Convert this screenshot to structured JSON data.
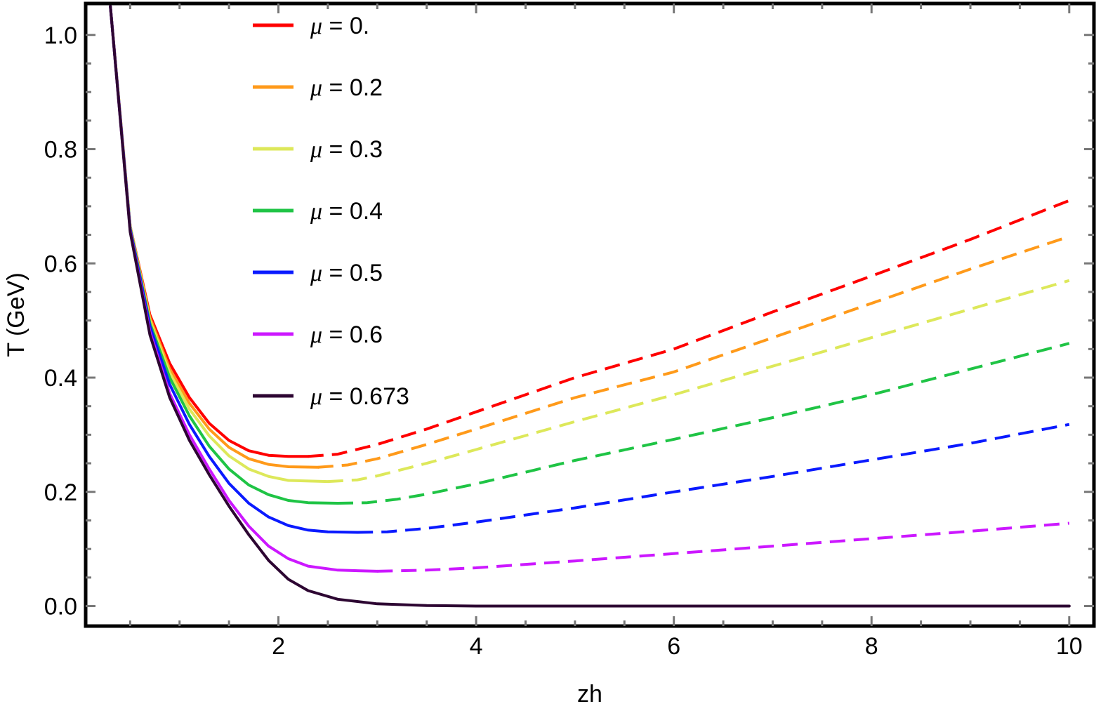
{
  "chart_data": {
    "type": "line",
    "title": "",
    "xlabel": "zh",
    "ylabel": "T (GeV)",
    "xlim": [
      0.05,
      10.25
    ],
    "ylim": [
      -0.035,
      1.055
    ],
    "xticks": [
      "2",
      "4",
      "6",
      "8",
      "10"
    ],
    "yticks": [
      "0.0",
      "0.2",
      "0.4",
      "0.6",
      "0.8",
      "1.0"
    ],
    "grid": false,
    "legend_position": "top-left",
    "legend_symbol": "μ",
    "series": [
      {
        "name": "= 0.",
        "color": "#ff0000",
        "solid": [
          [
            0.3,
            1.05
          ],
          [
            0.5,
            0.665
          ],
          [
            0.7,
            0.51
          ],
          [
            0.9,
            0.425
          ],
          [
            1.1,
            0.365
          ],
          [
            1.3,
            0.32
          ],
          [
            1.5,
            0.29
          ],
          [
            1.7,
            0.272
          ],
          [
            1.9,
            0.264
          ],
          [
            2.1,
            0.262
          ],
          [
            2.3,
            0.262
          ]
        ],
        "dashed": [
          [
            2.3,
            0.262
          ],
          [
            2.6,
            0.266
          ],
          [
            3.0,
            0.283
          ],
          [
            3.5,
            0.31
          ],
          [
            4.0,
            0.34
          ],
          [
            5.0,
            0.4
          ],
          [
            6.0,
            0.45
          ],
          [
            7.0,
            0.515
          ],
          [
            8.0,
            0.578
          ],
          [
            9.0,
            0.642
          ],
          [
            10.0,
            0.71
          ]
        ]
      },
      {
        "name": "= 0.2",
        "color": "#ff9a1a",
        "solid": [
          [
            0.3,
            1.05
          ],
          [
            0.5,
            0.665
          ],
          [
            0.7,
            0.505
          ],
          [
            0.9,
            0.415
          ],
          [
            1.1,
            0.355
          ],
          [
            1.3,
            0.31
          ],
          [
            1.5,
            0.278
          ],
          [
            1.7,
            0.258
          ],
          [
            1.9,
            0.248
          ],
          [
            2.1,
            0.244
          ],
          [
            2.4,
            0.243
          ]
        ],
        "dashed": [
          [
            2.4,
            0.243
          ],
          [
            2.7,
            0.247
          ],
          [
            3.0,
            0.258
          ],
          [
            3.5,
            0.283
          ],
          [
            4.0,
            0.31
          ],
          [
            5.0,
            0.365
          ],
          [
            6.0,
            0.41
          ],
          [
            7.0,
            0.47
          ],
          [
            8.0,
            0.53
          ],
          [
            9.0,
            0.59
          ],
          [
            10.0,
            0.647
          ]
        ]
      },
      {
        "name": "= 0.3",
        "color": "#dde85a",
        "solid": [
          [
            0.3,
            1.05
          ],
          [
            0.5,
            0.664
          ],
          [
            0.7,
            0.5
          ],
          [
            0.9,
            0.408
          ],
          [
            1.1,
            0.345
          ],
          [
            1.3,
            0.298
          ],
          [
            1.5,
            0.263
          ],
          [
            1.7,
            0.24
          ],
          [
            1.9,
            0.227
          ],
          [
            2.1,
            0.22
          ],
          [
            2.5,
            0.218
          ]
        ],
        "dashed": [
          [
            2.5,
            0.218
          ],
          [
            2.8,
            0.221
          ],
          [
            3.0,
            0.228
          ],
          [
            3.5,
            0.25
          ],
          [
            4.0,
            0.274
          ],
          [
            5.0,
            0.323
          ],
          [
            6.0,
            0.37
          ],
          [
            7.0,
            0.42
          ],
          [
            8.0,
            0.47
          ],
          [
            9.0,
            0.52
          ],
          [
            10.0,
            0.57
          ]
        ]
      },
      {
        "name": "= 0.4",
        "color": "#1fc445",
        "solid": [
          [
            0.3,
            1.05
          ],
          [
            0.5,
            0.662
          ],
          [
            0.7,
            0.495
          ],
          [
            0.9,
            0.4
          ],
          [
            1.1,
            0.333
          ],
          [
            1.3,
            0.28
          ],
          [
            1.5,
            0.24
          ],
          [
            1.7,
            0.212
          ],
          [
            1.9,
            0.195
          ],
          [
            2.1,
            0.185
          ],
          [
            2.3,
            0.181
          ],
          [
            2.6,
            0.18
          ]
        ],
        "dashed": [
          [
            2.6,
            0.18
          ],
          [
            2.9,
            0.181
          ],
          [
            3.2,
            0.187
          ],
          [
            3.5,
            0.196
          ],
          [
            4.0,
            0.214
          ],
          [
            5.0,
            0.255
          ],
          [
            6.0,
            0.292
          ],
          [
            7.0,
            0.33
          ],
          [
            8.0,
            0.37
          ],
          [
            9.0,
            0.415
          ],
          [
            10.0,
            0.46
          ]
        ]
      },
      {
        "name": "= 0.5",
        "color": "#0a1aff",
        "solid": [
          [
            0.3,
            1.05
          ],
          [
            0.5,
            0.66
          ],
          [
            0.7,
            0.49
          ],
          [
            0.9,
            0.388
          ],
          [
            1.1,
            0.318
          ],
          [
            1.3,
            0.262
          ],
          [
            1.5,
            0.215
          ],
          [
            1.7,
            0.18
          ],
          [
            1.9,
            0.156
          ],
          [
            2.1,
            0.141
          ],
          [
            2.3,
            0.133
          ],
          [
            2.5,
            0.13
          ],
          [
            2.8,
            0.129
          ]
        ],
        "dashed": [
          [
            2.8,
            0.129
          ],
          [
            3.1,
            0.13
          ],
          [
            3.5,
            0.136
          ],
          [
            4.0,
            0.147
          ],
          [
            5.0,
            0.172
          ],
          [
            6.0,
            0.2
          ],
          [
            7.0,
            0.227
          ],
          [
            8.0,
            0.256
          ],
          [
            9.0,
            0.285
          ],
          [
            10.0,
            0.318
          ]
        ]
      },
      {
        "name": "= 0.6",
        "color": "#cc18ff",
        "solid": [
          [
            0.3,
            1.05
          ],
          [
            0.5,
            0.657
          ],
          [
            0.7,
            0.48
          ],
          [
            0.9,
            0.372
          ],
          [
            1.1,
            0.3
          ],
          [
            1.3,
            0.24
          ],
          [
            1.5,
            0.185
          ],
          [
            1.7,
            0.14
          ],
          [
            1.9,
            0.105
          ],
          [
            2.1,
            0.083
          ],
          [
            2.3,
            0.07
          ],
          [
            2.6,
            0.063
          ],
          [
            3.0,
            0.061
          ]
        ],
        "dashed": [
          [
            3.0,
            0.061
          ],
          [
            3.5,
            0.063
          ],
          [
            4.0,
            0.067
          ],
          [
            5.0,
            0.079
          ],
          [
            6.0,
            0.092
          ],
          [
            7.0,
            0.105
          ],
          [
            8.0,
            0.118
          ],
          [
            9.0,
            0.131
          ],
          [
            10.0,
            0.145
          ]
        ]
      },
      {
        "name": "= 0.673",
        "color": "#2d0632",
        "solid": [
          [
            0.3,
            1.05
          ],
          [
            0.5,
            0.655
          ],
          [
            0.7,
            0.475
          ],
          [
            0.9,
            0.365
          ],
          [
            1.1,
            0.29
          ],
          [
            1.3,
            0.23
          ],
          [
            1.5,
            0.175
          ],
          [
            1.7,
            0.125
          ],
          [
            1.9,
            0.08
          ],
          [
            2.1,
            0.047
          ],
          [
            2.3,
            0.027
          ],
          [
            2.6,
            0.012
          ],
          [
            3.0,
            0.004
          ],
          [
            3.5,
            0.001
          ],
          [
            4.0,
            0.0
          ],
          [
            6.0,
            0.0
          ],
          [
            8.0,
            0.0
          ],
          [
            10.0,
            0.0
          ]
        ],
        "dashed": []
      }
    ]
  }
}
